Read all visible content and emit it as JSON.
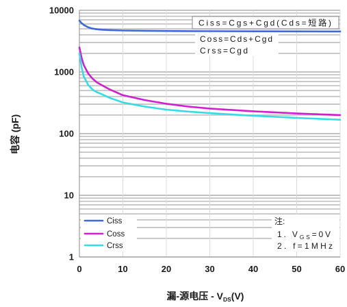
{
  "chart_data": {
    "type": "line",
    "xlabel": {
      "text": "漏-源电压 - V",
      "subscript": "DS",
      "suffix": "(V)"
    },
    "ylabel": "电容 (pF)",
    "x_scale": "linear",
    "y_scale": "log",
    "xlim": [
      0,
      60
    ],
    "ylim": [
      1,
      10000
    ],
    "x_ticks": [
      0,
      10,
      20,
      30,
      40,
      50,
      60
    ],
    "y_ticks": [
      10000,
      1000,
      100,
      10,
      1
    ],
    "grid": true,
    "legend_position": "bottom-left",
    "series": [
      {
        "name": "Ciss",
        "color": "#3f68d8",
        "x": [
          0,
          0.5,
          1,
          2,
          3,
          4,
          5,
          7,
          10,
          15,
          20,
          25,
          30,
          40,
          50,
          60
        ],
        "y": [
          6800,
          6200,
          5800,
          5300,
          5050,
          4920,
          4850,
          4780,
          4700,
          4650,
          4620,
          4600,
          4580,
          4560,
          4550,
          4540
        ]
      },
      {
        "name": "Coss",
        "color": "#d21ed2",
        "x": [
          0,
          0.5,
          1,
          2,
          3,
          4,
          5,
          7,
          10,
          15,
          20,
          25,
          30,
          40,
          50,
          60
        ],
        "y": [
          2500,
          1700,
          1300,
          950,
          780,
          680,
          620,
          520,
          420,
          350,
          305,
          275,
          255,
          230,
          212,
          200
        ]
      },
      {
        "name": "Crss",
        "color": "#33dde6",
        "x": [
          0,
          0.5,
          1,
          2,
          3,
          4,
          5,
          7,
          10,
          15,
          20,
          25,
          30,
          40,
          50,
          60
        ],
        "y": [
          2000,
          1200,
          850,
          620,
          520,
          470,
          440,
          380,
          320,
          275,
          245,
          228,
          215,
          195,
          180,
          168
        ]
      }
    ],
    "annotations": [
      "Ciss=Cgs+Cgd(Cds=短路)",
      "Coss=Cds+Cgd",
      "Crss=Cgd"
    ],
    "note": {
      "heading": "注:",
      "line1": {
        "text": "1. V",
        "subscript": "GS",
        "suffix": "=0V"
      },
      "line2": "2. f=1MHz"
    }
  }
}
